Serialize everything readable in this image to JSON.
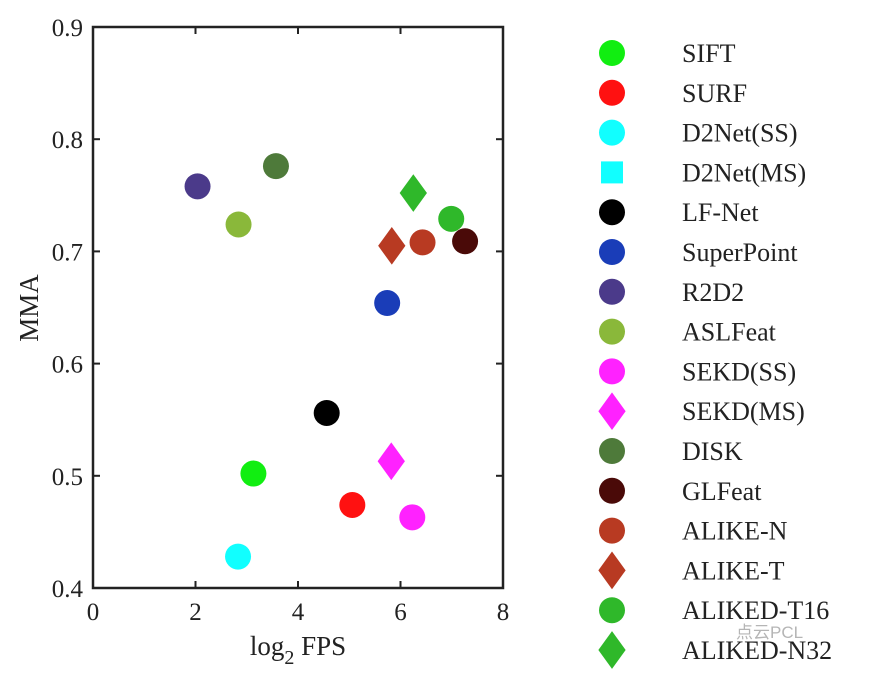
{
  "chart_data": {
    "type": "scatter",
    "title": "",
    "xlabel_base": "log",
    "xlabel_sub": "2",
    "xlabel_rest": " FPS",
    "ylabel": "MMA",
    "xlim": [
      0,
      8
    ],
    "ylim": [
      0.4,
      0.9
    ],
    "xticks": [
      0,
      2,
      4,
      6,
      8
    ],
    "yticks": [
      0.4,
      0.5,
      0.6,
      0.7,
      0.8,
      0.9
    ],
    "xtick_labels": [
      "0",
      "2",
      "4",
      "6",
      "8"
    ],
    "ytick_labels": [
      "0.4",
      "0.5",
      "0.6",
      "0.7",
      "0.8",
      "0.9"
    ],
    "grid": false,
    "legend_position": "right",
    "series": [
      {
        "name": "SIFT",
        "marker": "circle",
        "color": "#11ee11",
        "x": 3.13,
        "y": 0.502
      },
      {
        "name": "SURF",
        "marker": "circle",
        "color": "#ff1111",
        "x": 5.06,
        "y": 0.474
      },
      {
        "name": "D2Net(SS)",
        "marker": "circle",
        "color": "#11ffff",
        "x": 2.83,
        "y": 0.428
      },
      {
        "name": "D2Net(MS)",
        "marker": "square",
        "color": "#11ffff",
        "x": null,
        "y": null
      },
      {
        "name": "LF-Net",
        "marker": "circle",
        "color": "#000000",
        "x": 4.56,
        "y": 0.556
      },
      {
        "name": "SuperPoint",
        "marker": "circle",
        "color": "#1a3db8",
        "x": 5.74,
        "y": 0.654
      },
      {
        "name": "R2D2",
        "marker": "circle",
        "color": "#4b3a8a",
        "x": 2.04,
        "y": 0.758
      },
      {
        "name": "ASLFeat",
        "marker": "circle",
        "color": "#8ab83a",
        "x": 2.84,
        "y": 0.724
      },
      {
        "name": "SEKD(SS)",
        "marker": "circle",
        "color": "#ff22ff",
        "x": 6.23,
        "y": 0.463
      },
      {
        "name": "SEKD(MS)",
        "marker": "diamond",
        "color": "#ff22ff",
        "x": 5.82,
        "y": 0.513
      },
      {
        "name": "DISK",
        "marker": "circle",
        "color": "#4e7a3a",
        "x": 3.57,
        "y": 0.776
      },
      {
        "name": "GLFeat",
        "marker": "circle",
        "color": "#4a0a08",
        "x": 7.26,
        "y": 0.709
      },
      {
        "name": "ALIKE-N",
        "marker": "circle",
        "color": "#b83a22",
        "x": 6.43,
        "y": 0.708
      },
      {
        "name": "ALIKE-T",
        "marker": "diamond",
        "color": "#b83a22",
        "x": 5.83,
        "y": 0.705
      },
      {
        "name": "ALIKED-T16",
        "marker": "circle",
        "color": "#2fb82a",
        "x": 6.99,
        "y": 0.729
      },
      {
        "name": "ALIKED-N32",
        "marker": "diamond",
        "color": "#2fb82a",
        "x": 6.25,
        "y": 0.752
      }
    ]
  },
  "watermark": "点云PCL"
}
